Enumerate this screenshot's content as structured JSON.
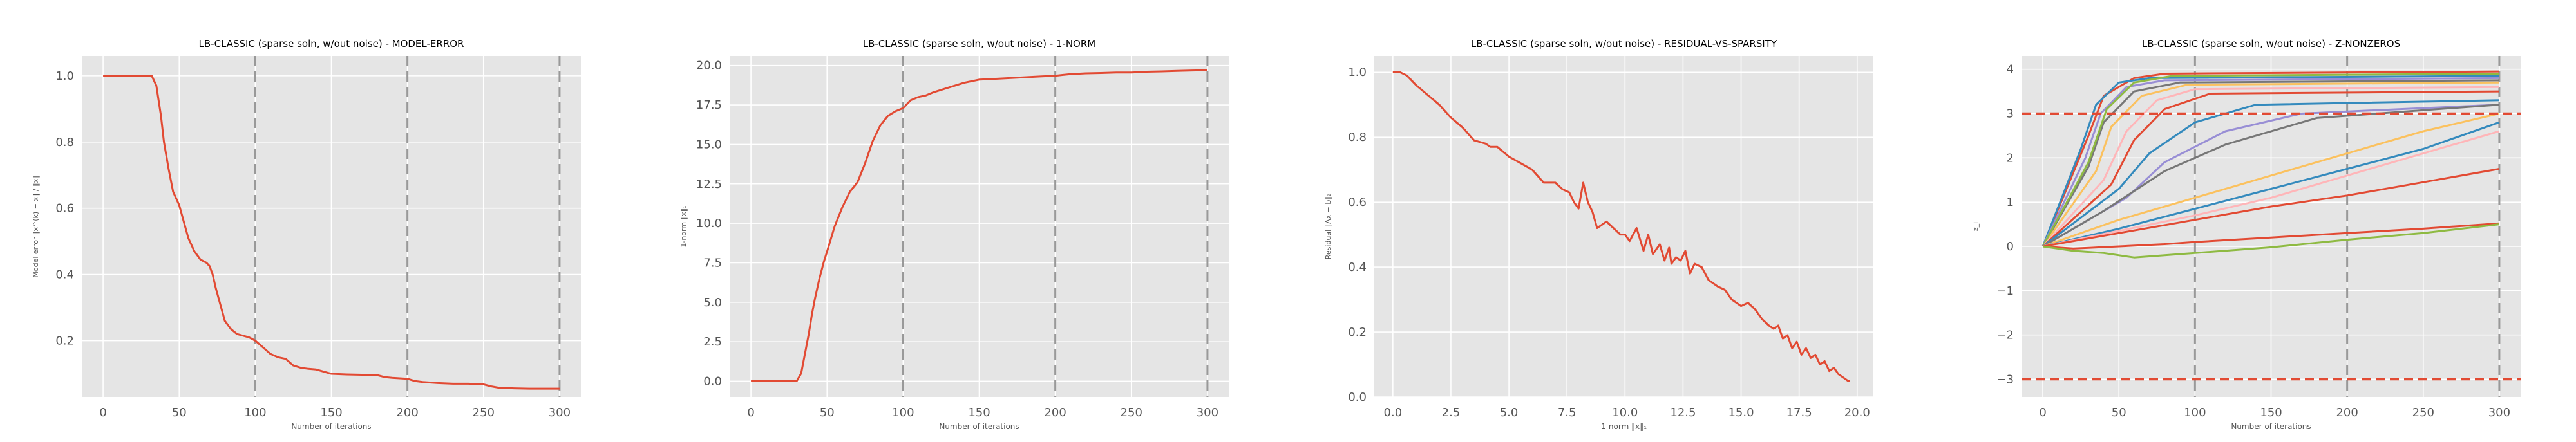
{
  "colors": {
    "panel_bg": "#e5e5e5",
    "grid": "#ffffff",
    "line_primary": "#e24a33",
    "vline": "#999999",
    "hline_dashed": "#e24a33",
    "tick_text": "#555555",
    "title_text": "#000000"
  },
  "chart_data": [
    {
      "type": "line",
      "title": "LB-CLASSIC (sparse soln, w/out noise) - MODEL-ERROR",
      "xlabel": "Number of iterations",
      "ylabel": "Model error ‖x^(k) − x‖ / ‖x‖",
      "xlim": [
        -14,
        314
      ],
      "ylim": [
        0.03,
        1.06
      ],
      "xticks": [
        0,
        50,
        100,
        150,
        200,
        250,
        300
      ],
      "yticks": [
        0.2,
        0.4,
        0.6,
        0.8,
        1.0
      ],
      "ytick_labels": [
        "0.2",
        "0.4",
        "0.6",
        "0.8",
        "1.0"
      ],
      "grid": true,
      "vlines": [
        100,
        200,
        300
      ],
      "series": [
        {
          "color": "#e24a33",
          "x": [
            0,
            10,
            20,
            32,
            35,
            38,
            40,
            43,
            46,
            50,
            53,
            56,
            60,
            64,
            68,
            70,
            72,
            74,
            77,
            80,
            84,
            88,
            92,
            96,
            100,
            105,
            110,
            115,
            120,
            125,
            130,
            135,
            140,
            150,
            160,
            170,
            180,
            185,
            190,
            200,
            205,
            210,
            220,
            230,
            240,
            250,
            255,
            260,
            270,
            280,
            290,
            300
          ],
          "y": [
            1.0,
            1.0,
            1.0,
            1.0,
            0.97,
            0.88,
            0.8,
            0.72,
            0.65,
            0.61,
            0.56,
            0.51,
            0.47,
            0.445,
            0.435,
            0.425,
            0.4,
            0.36,
            0.31,
            0.26,
            0.235,
            0.22,
            0.215,
            0.21,
            0.2,
            0.18,
            0.16,
            0.15,
            0.145,
            0.125,
            0.118,
            0.115,
            0.113,
            0.1,
            0.098,
            0.097,
            0.096,
            0.09,
            0.088,
            0.085,
            0.078,
            0.075,
            0.072,
            0.07,
            0.07,
            0.068,
            0.062,
            0.058,
            0.056,
            0.055,
            0.055,
            0.055
          ]
        }
      ]
    },
    {
      "type": "line",
      "title": "LB-CLASSIC (sparse soln, w/out noise) - 1-NORM",
      "xlabel": "Number of iterations",
      "ylabel": "1-norm ‖x‖₁",
      "xlim": [
        -14,
        314
      ],
      "ylim": [
        -1.0,
        20.6
      ],
      "xticks": [
        0,
        50,
        100,
        150,
        200,
        250,
        300
      ],
      "yticks": [
        0.0,
        2.5,
        5.0,
        7.5,
        10.0,
        12.5,
        15.0,
        17.5,
        20.0
      ],
      "ytick_labels": [
        "0.0",
        "2.5",
        "5.0",
        "7.5",
        "10.0",
        "12.5",
        "15.0",
        "17.5",
        "20.0"
      ],
      "grid": true,
      "vlines": [
        100,
        200,
        300
      ],
      "series": [
        {
          "color": "#e24a33",
          "x": [
            0,
            10,
            20,
            30,
            33,
            35,
            38,
            40,
            42,
            45,
            48,
            50,
            55,
            60,
            65,
            70,
            75,
            80,
            85,
            90,
            95,
            100,
            105,
            110,
            115,
            120,
            130,
            140,
            150,
            160,
            170,
            180,
            190,
            200,
            210,
            220,
            230,
            240,
            250,
            260,
            270,
            280,
            290,
            300
          ],
          "y": [
            0.0,
            0.0,
            0.0,
            0.0,
            0.5,
            1.5,
            3.0,
            4.2,
            5.2,
            6.5,
            7.6,
            8.2,
            9.8,
            11.0,
            12.0,
            12.6,
            13.8,
            15.2,
            16.2,
            16.8,
            17.1,
            17.3,
            17.8,
            18.0,
            18.1,
            18.3,
            18.6,
            18.9,
            19.1,
            19.15,
            19.2,
            19.25,
            19.3,
            19.35,
            19.45,
            19.5,
            19.52,
            19.55,
            19.55,
            19.6,
            19.62,
            19.65,
            19.68,
            19.7
          ]
        }
      ]
    },
    {
      "type": "line",
      "title": "LB-CLASSIC (sparse soln, w/out noise) - RESIDUAL-VS-SPARSITY",
      "xlabel": "1-norm ‖x‖₁",
      "ylabel": "Residual ‖Ax − b‖₂",
      "xlim": [
        -0.8,
        20.7
      ],
      "ylim": [
        0.0,
        1.05
      ],
      "xticks": [
        0.0,
        2.5,
        5.0,
        7.5,
        10.0,
        12.5,
        15.0,
        17.5,
        20.0
      ],
      "xtick_labels": [
        "0.0",
        "2.5",
        "5.0",
        "7.5",
        "10.0",
        "12.5",
        "15.0",
        "17.5",
        "20.0"
      ],
      "yticks": [
        0.0,
        0.2,
        0.4,
        0.6,
        0.8,
        1.0
      ],
      "ytick_labels": [
        "0.0",
        "0.2",
        "0.4",
        "0.6",
        "0.8",
        "1.0"
      ],
      "grid": true,
      "series": [
        {
          "color": "#e24a33",
          "x": [
            0.0,
            0.3,
            0.6,
            1.0,
            1.5,
            2.0,
            2.5,
            3.0,
            3.5,
            4.0,
            4.2,
            4.5,
            5.0,
            5.5,
            6.0,
            6.5,
            7.0,
            7.3,
            7.6,
            7.8,
            8.0,
            8.2,
            8.4,
            8.6,
            8.8,
            9.0,
            9.2,
            9.5,
            9.8,
            10.0,
            10.2,
            10.5,
            10.8,
            11.0,
            11.2,
            11.5,
            11.7,
            11.9,
            12.0,
            12.2,
            12.4,
            12.6,
            12.8,
            13.0,
            13.3,
            13.6,
            14.0,
            14.3,
            14.6,
            15.0,
            15.3,
            15.6,
            15.9,
            16.2,
            16.4,
            16.6,
            16.8,
            17.0,
            17.2,
            17.4,
            17.6,
            17.8,
            18.0,
            18.2,
            18.4,
            18.6,
            18.8,
            19.0,
            19.2,
            19.4,
            19.6,
            19.7
          ],
          "y": [
            1.0,
            1.0,
            0.99,
            0.96,
            0.93,
            0.9,
            0.86,
            0.83,
            0.79,
            0.78,
            0.77,
            0.77,
            0.74,
            0.72,
            0.7,
            0.66,
            0.66,
            0.64,
            0.63,
            0.6,
            0.58,
            0.66,
            0.6,
            0.57,
            0.52,
            0.53,
            0.54,
            0.52,
            0.5,
            0.5,
            0.48,
            0.52,
            0.45,
            0.5,
            0.44,
            0.47,
            0.42,
            0.46,
            0.41,
            0.43,
            0.42,
            0.45,
            0.38,
            0.41,
            0.4,
            0.36,
            0.34,
            0.33,
            0.3,
            0.28,
            0.29,
            0.27,
            0.24,
            0.22,
            0.21,
            0.22,
            0.18,
            0.19,
            0.15,
            0.17,
            0.13,
            0.15,
            0.12,
            0.13,
            0.1,
            0.11,
            0.08,
            0.09,
            0.07,
            0.06,
            0.05,
            0.05
          ]
        }
      ]
    },
    {
      "type": "line",
      "title": "LB-CLASSIC (sparse soln, w/out noise) - Z-NONZEROS",
      "xlabel": "Number of iterations",
      "ylabel": "z_i",
      "xlim": [
        -14,
        314
      ],
      "ylim": [
        -3.4,
        4.3
      ],
      "xticks": [
        0,
        50,
        100,
        150,
        200,
        250,
        300
      ],
      "yticks": [
        -3,
        -2,
        -1,
        0,
        1,
        2,
        3,
        4
      ],
      "ytick_labels": [
        "−3",
        "−2",
        "−1",
        "0",
        "1",
        "2",
        "3",
        "4"
      ],
      "grid": true,
      "vlines": [
        100,
        200,
        300
      ],
      "hlines": [
        3,
        -3
      ],
      "series": [
        {
          "color": "#e24a33",
          "x": [
            0,
            30,
            40,
            60,
            80,
            300
          ],
          "y": [
            0,
            2.5,
            3.4,
            3.8,
            3.9,
            3.95
          ]
        },
        {
          "color": "#348abd",
          "x": [
            0,
            25,
            35,
            50,
            70,
            300
          ],
          "y": [
            0,
            2.2,
            3.2,
            3.7,
            3.8,
            3.85
          ]
        },
        {
          "color": "#988ed5",
          "x": [
            0,
            28,
            38,
            55,
            80,
            300
          ],
          "y": [
            0,
            2.0,
            3.0,
            3.6,
            3.75,
            3.8
          ]
        },
        {
          "color": "#777777",
          "x": [
            0,
            30,
            40,
            60,
            90,
            300
          ],
          "y": [
            0,
            1.8,
            2.8,
            3.5,
            3.7,
            3.75
          ]
        },
        {
          "color": "#fbc15e",
          "x": [
            0,
            35,
            45,
            65,
            95,
            300
          ],
          "y": [
            0,
            1.7,
            2.7,
            3.4,
            3.65,
            3.7
          ]
        },
        {
          "color": "#8eba42",
          "x": [
            0,
            30,
            42,
            60,
            85,
            300
          ],
          "y": [
            0,
            1.9,
            3.1,
            3.7,
            3.85,
            3.9
          ]
        },
        {
          "color": "#ffb5b8",
          "x": [
            0,
            40,
            55,
            75,
            100,
            300
          ],
          "y": [
            0,
            1.5,
            2.6,
            3.3,
            3.55,
            3.6
          ]
        },
        {
          "color": "#e24a33",
          "x": [
            0,
            45,
            60,
            80,
            110,
            300
          ],
          "y": [
            0,
            1.4,
            2.4,
            3.1,
            3.45,
            3.5
          ]
        },
        {
          "color": "#348abd",
          "x": [
            0,
            50,
            70,
            100,
            140,
            300
          ],
          "y": [
            0,
            1.3,
            2.1,
            2.8,
            3.2,
            3.3
          ]
        },
        {
          "color": "#988ed5",
          "x": [
            0,
            55,
            80,
            120,
            170,
            300
          ],
          "y": [
            0,
            1.1,
            1.9,
            2.6,
            3.0,
            3.2
          ]
        },
        {
          "color": "#777777",
          "x": [
            0,
            40,
            80,
            120,
            180,
            300
          ],
          "y": [
            0,
            0.8,
            1.7,
            2.3,
            2.9,
            3.2
          ]
        },
        {
          "color": "#fbc15e",
          "x": [
            0,
            50,
            100,
            150,
            200,
            250,
            300
          ],
          "y": [
            0,
            0.6,
            1.1,
            1.6,
            2.1,
            2.6,
            3.0
          ]
        },
        {
          "color": "#348abd",
          "x": [
            0,
            50,
            100,
            150,
            200,
            250,
            300
          ],
          "y": [
            0,
            0.4,
            0.85,
            1.3,
            1.75,
            2.2,
            2.8
          ]
        },
        {
          "color": "#ffb5b8",
          "x": [
            0,
            50,
            100,
            150,
            200,
            250,
            300
          ],
          "y": [
            0,
            0.35,
            0.7,
            1.1,
            1.6,
            2.1,
            2.6
          ]
        },
        {
          "color": "#e24a33",
          "x": [
            0,
            50,
            100,
            150,
            200,
            250,
            300
          ],
          "y": [
            0,
            0.3,
            0.6,
            0.9,
            1.15,
            1.45,
            1.75
          ]
        },
        {
          "color": "#e24a33",
          "x": [
            0,
            20,
            50,
            80,
            100,
            150,
            200,
            250,
            300
          ],
          "y": [
            0,
            -0.05,
            0.0,
            0.05,
            0.1,
            0.2,
            0.3,
            0.4,
            0.52
          ]
        },
        {
          "color": "#8eba42",
          "x": [
            0,
            20,
            40,
            60,
            80,
            100,
            150,
            200,
            250,
            300
          ],
          "y": [
            0,
            -0.1,
            -0.15,
            -0.25,
            -0.2,
            -0.15,
            -0.02,
            0.15,
            0.3,
            0.5
          ]
        }
      ]
    }
  ]
}
